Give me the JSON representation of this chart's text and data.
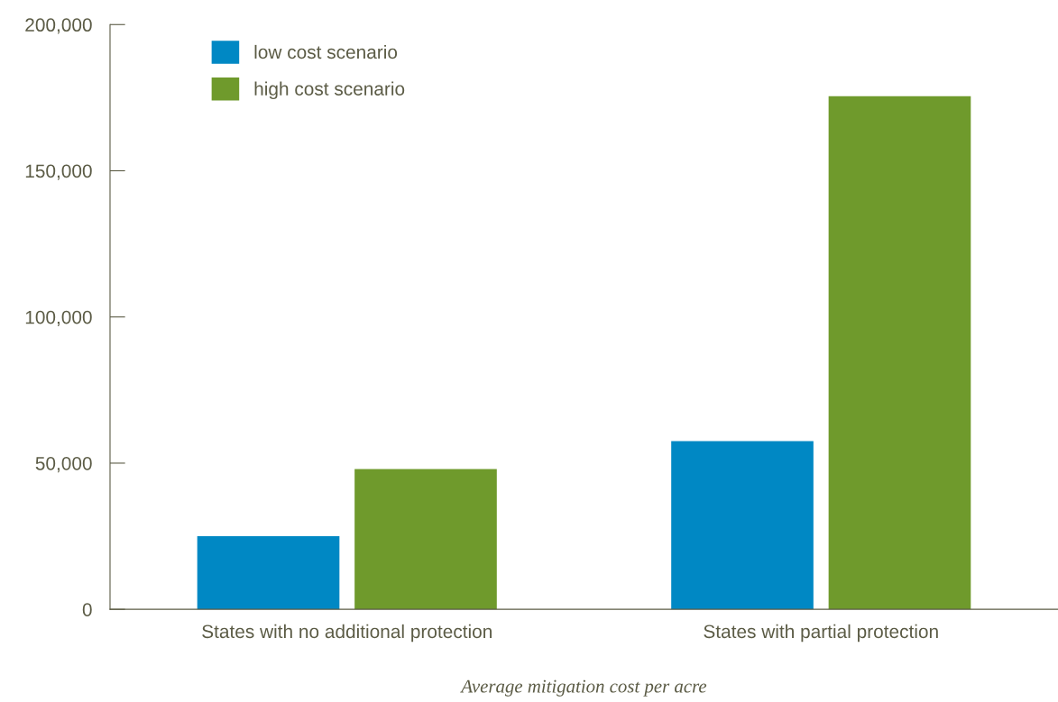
{
  "chart_data": {
    "type": "bar",
    "xlabel": "Average mitigation cost per acre",
    "categories": [
      "States with no additional protection",
      "States with partial protection"
    ],
    "series": [
      {
        "name": "low cost scenario",
        "color": "#0088c4",
        "values": [
          25000,
          57500
        ]
      },
      {
        "name": "high cost scenario",
        "color": "#6f9a2c",
        "values": [
          48000,
          175500
        ]
      }
    ],
    "ylim": [
      0,
      200000
    ],
    "yticks": [
      {
        "value": 0,
        "label": "0"
      },
      {
        "value": 50000,
        "label": "50,000"
      },
      {
        "value": 100000,
        "label": "100,000"
      },
      {
        "value": 150000,
        "label": "150,000"
      },
      {
        "value": 200000,
        "label": "200,000"
      }
    ],
    "grid": false,
    "legend": "top left"
  }
}
